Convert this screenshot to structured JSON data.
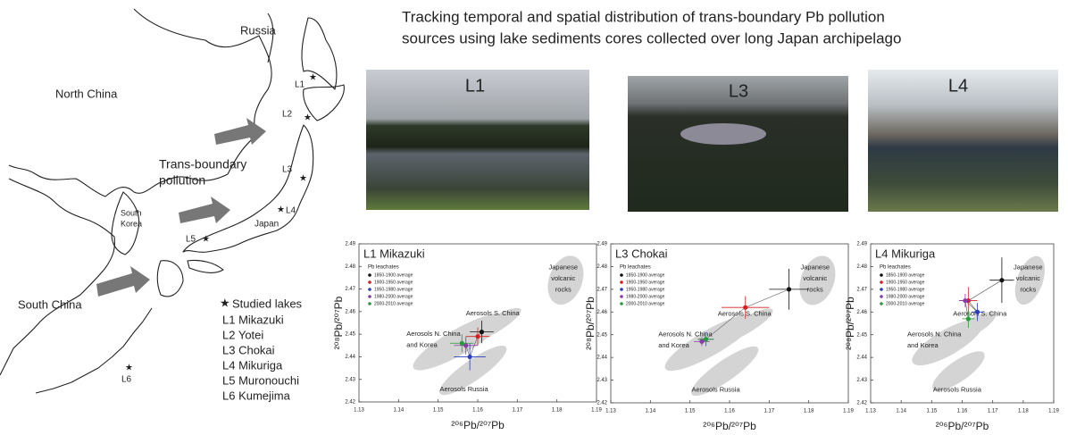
{
  "title": [
    "Tracking temporal and spatial distribution of trans-boundary Pb pollution",
    "sources using lake sediments cores collected over long Japan archipelago"
  ],
  "map": {
    "labels": [
      "Russia",
      "North China",
      "Trans-boundary",
      "pollution",
      "South",
      "Korea",
      "Japan",
      "South China"
    ],
    "lake_markers": [
      "L1",
      "L2",
      "L3",
      "L4",
      "L5",
      "L6"
    ],
    "legend_title": "Studied lakes",
    "lakes": [
      "L1 Mikazuki",
      "L2 Yotei",
      "L3 Chokai",
      "L4 Mikuriga",
      "L5 Muronouchi",
      "L6 Kumejima"
    ]
  },
  "photos": [
    "L1",
    "L3",
    "L4"
  ],
  "chart_data": [
    {
      "type": "scatter",
      "title": "L1 Mikazuki",
      "xlabel": "²⁰⁶Pb/²⁰⁷Pb",
      "ylabel": "²⁰⁸Pb/²⁰⁷Pb",
      "legend_title": "Pb leachates",
      "xlim": [
        1.13,
        1.19
      ],
      "ylim": [
        2.42,
        2.49
      ],
      "xticks": [
        1.13,
        1.14,
        1.15,
        1.16,
        1.17,
        1.18,
        1.19
      ],
      "yticks": [
        2.42,
        2.43,
        2.44,
        2.45,
        2.46,
        2.47,
        2.48,
        2.49
      ],
      "connected": true,
      "annotations": [
        "Aerosols S. China",
        "Aerosols N. China",
        "and Korea",
        "Aerosols Russia",
        "Japanese",
        "volcanic",
        "rocks"
      ],
      "series": [
        {
          "name": "1850-1900 average",
          "color": "#111111",
          "x": [
            1.161
          ],
          "values": [
            2.451
          ],
          "xerr": [
            0.003
          ],
          "yerr": [
            0.005
          ]
        },
        {
          "name": "1900-1950 average",
          "color": "#d62020",
          "x": [
            1.16
          ],
          "values": [
            2.449
          ],
          "xerr": [
            0.003
          ],
          "yerr": [
            0.004
          ]
        },
        {
          "name": "1950-1980 average",
          "color": "#2a3fc0",
          "x": [
            1.158
          ],
          "values": [
            2.44
          ],
          "xerr": [
            0.004
          ],
          "yerr": [
            0.006
          ]
        },
        {
          "name": "1980-2000 average",
          "color": "#8a3aa8",
          "x": [
            1.157
          ],
          "values": [
            2.445
          ],
          "xerr": [
            0.003
          ],
          "yerr": [
            0.004
          ]
        },
        {
          "name": "2000-2010 average",
          "color": "#2a9a3a",
          "x": [
            1.156
          ],
          "values": [
            2.446
          ],
          "xerr": [
            0.003
          ],
          "yerr": [
            0.004
          ]
        }
      ]
    },
    {
      "type": "scatter",
      "title": "L3 Chokai",
      "xlabel": "²⁰⁶Pb/²⁰⁷Pb",
      "ylabel": "²⁰⁸Pb/²⁰⁷Pb",
      "legend_title": "Pb leachates",
      "xlim": [
        1.13,
        1.19
      ],
      "ylim": [
        2.42,
        2.49
      ],
      "xticks": [
        1.13,
        1.14,
        1.15,
        1.16,
        1.17,
        1.18,
        1.19
      ],
      "yticks": [
        2.42,
        2.43,
        2.44,
        2.45,
        2.46,
        2.47,
        2.48,
        2.49
      ],
      "connected": true,
      "annotations": [
        "Aerosols S. China",
        "Aerosols N. China",
        "and Korea",
        "Aerosols Russia",
        "Japanese",
        "volcanic",
        "rocks"
      ],
      "series": [
        {
          "name": "1850-1900 average",
          "color": "#111111",
          "x": [
            1.175
          ],
          "values": [
            2.47
          ],
          "xerr": [
            0.005
          ],
          "yerr": [
            0.009
          ]
        },
        {
          "name": "1900-1950 average",
          "color": "#d62020",
          "x": [
            1.164
          ],
          "values": [
            2.462
          ],
          "xerr": [
            0.006
          ],
          "yerr": [
            0.005
          ]
        },
        {
          "name": "1950-1980 average",
          "color": "#2a3fc0",
          "x": [
            1.154
          ],
          "values": [
            2.448
          ],
          "xerr": [
            0.002
          ],
          "yerr": [
            0.003
          ]
        },
        {
          "name": "1980-2000 average",
          "color": "#8a3aa8",
          "x": [
            1.153
          ],
          "values": [
            2.447
          ],
          "xerr": [
            0.002
          ],
          "yerr": [
            0.002
          ]
        },
        {
          "name": "2000-2010 average",
          "color": "#2a9a3a",
          "x": [
            1.154
          ],
          "values": [
            2.448
          ],
          "xerr": [
            0.002
          ],
          "yerr": [
            0.002
          ]
        }
      ]
    },
    {
      "type": "scatter",
      "title": "L4 Mikuriga",
      "xlabel": "²⁰⁶Pb/²⁰⁷Pb",
      "ylabel": "²⁰⁸Pb/²⁰⁷Pb",
      "legend_title": "Pb leachates",
      "xlim": [
        1.13,
        1.19
      ],
      "ylim": [
        2.42,
        2.49
      ],
      "xticks": [
        1.13,
        1.14,
        1.15,
        1.16,
        1.17,
        1.18,
        1.19
      ],
      "yticks": [
        2.42,
        2.43,
        2.44,
        2.45,
        2.46,
        2.47,
        2.48,
        2.49
      ],
      "connected": true,
      "annotations": [
        "Aerosols S. China",
        "Aerosols N. China",
        "and Korea",
        "Aerosols Russia",
        "Japanese",
        "volcanic",
        "rocks"
      ],
      "series": [
        {
          "name": "1850-1900 average",
          "color": "#111111",
          "x": [
            1.173
          ],
          "values": [
            2.474
          ],
          "xerr": [
            0.004
          ],
          "yerr": [
            0.01
          ]
        },
        {
          "name": "1900-1950 average",
          "color": "#d62020",
          "x": [
            1.162
          ],
          "values": [
            2.465
          ],
          "xerr": [
            0.003
          ],
          "yerr": [
            0.006
          ]
        },
        {
          "name": "1950-1980 average",
          "color": "#2a3fc0",
          "x": [
            1.165
          ],
          "values": [
            2.46
          ],
          "xerr": [
            0.002
          ],
          "yerr": [
            0.004
          ]
        },
        {
          "name": "1980-2000 average",
          "color": "#8a3aa8",
          "x": [
            1.161
          ],
          "values": [
            2.465
          ],
          "xerr": [
            0.002
          ],
          "yerr": [
            0.003
          ]
        },
        {
          "name": "2000-2010 average",
          "color": "#2a9a3a",
          "x": [
            1.162
          ],
          "values": [
            2.457
          ],
          "xerr": [
            0.002
          ],
          "yerr": [
            0.004
          ]
        }
      ]
    }
  ]
}
